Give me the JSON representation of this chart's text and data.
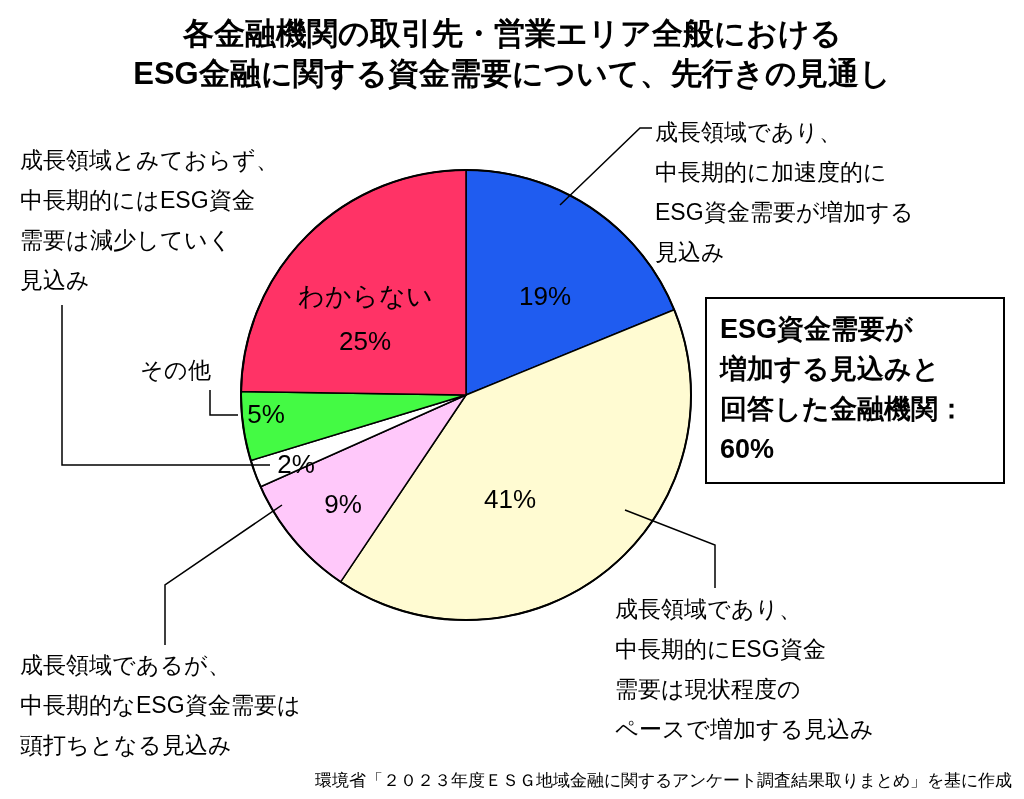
{
  "chart_data": {
    "type": "pie",
    "title": "各金融機関の取引先・営業エリア全般における\nESG金融に関する資金需要について、先行きの見通し",
    "categories": [
      "成長領域であり、中長期的に加速度的にESG資金需要が増加する見込み",
      "成長領域であり、中長期的にESG資金需要は現状程度のペースで増加する見込み",
      "成長領域であるが、中長期的なESG資金需要は頭打ちとなる見込み",
      "成長領域とみておらず、中長期的にはESG資金需要は減少していく見込み",
      "その他",
      "わからない"
    ],
    "values": [
      19,
      41,
      9,
      2,
      5,
      25
    ],
    "value_labels": [
      "19%",
      "41%",
      "9%",
      "2%",
      "5%",
      "25%"
    ],
    "colors": [
      "#1f5cf0",
      "#fffbd2",
      "#ffc8fa",
      "#ffffff",
      "#44fa44",
      "#ff3366"
    ],
    "annotations": [
      "ESG資金需要が増加する見込みと回答した金融機関：60%",
      "環境省「２０２３年度ＥＳＧ地域金融に関するアンケート調査結果取りまとめ」を基に作成"
    ]
  }
}
